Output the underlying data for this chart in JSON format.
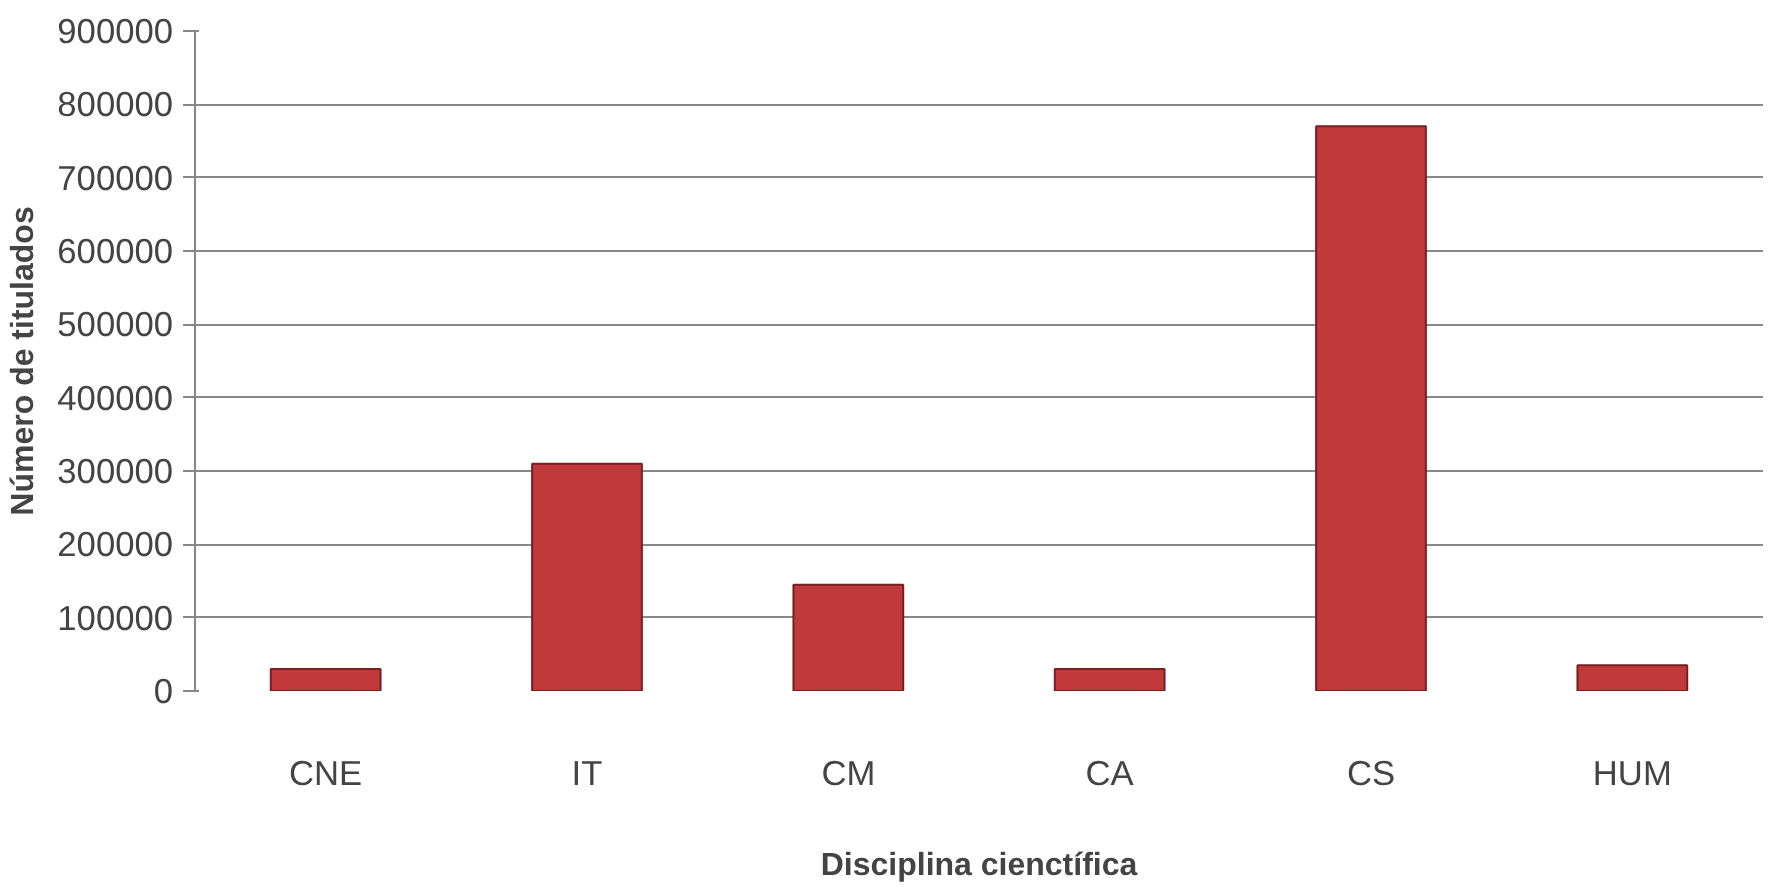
{
  "chart_data": {
    "type": "bar",
    "xlabel": "Disciplina cienctífica",
    "ylabel": "Número de titulados",
    "categories": [
      "CNE",
      "IT",
      "CM",
      "CA",
      "CS",
      "HUM"
    ],
    "values": [
      30000,
      310000,
      145000,
      30000,
      770000,
      35000
    ],
    "color": "#c0393b",
    "ylim": [
      0,
      900000
    ],
    "yticks": [
      0,
      100000,
      200000,
      300000,
      400000,
      500000,
      600000,
      700000,
      800000,
      900000
    ],
    "grid": "y"
  }
}
